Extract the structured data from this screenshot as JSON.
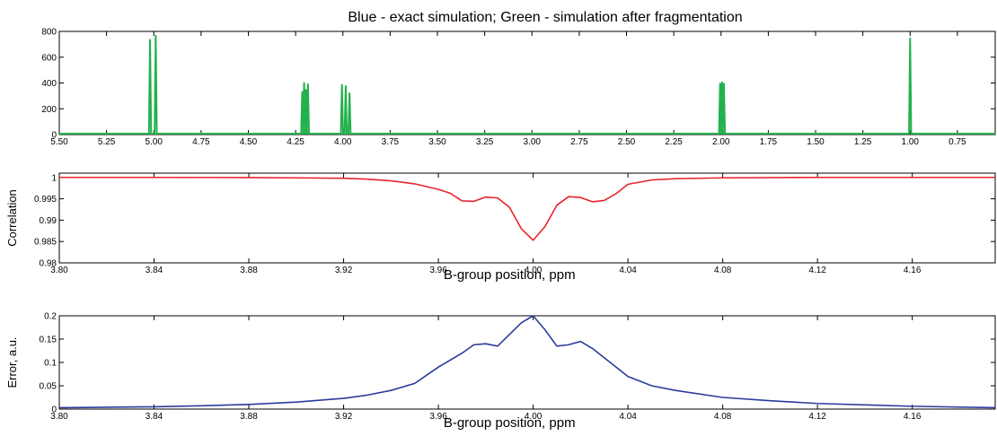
{
  "chart_data": [
    {
      "type": "line",
      "title": "Blue - exact simulation; Green - simulation after fragmentation",
      "xlabel": "",
      "ylabel": "",
      "x_reversed": true,
      "xlim": [
        5.5,
        0.55
      ],
      "ylim": [
        0,
        800
      ],
      "xticks": [
        "5.50",
        "5.25",
        "5.00",
        "4.75",
        "4.50",
        "4.25",
        "4.00",
        "3.75",
        "3.50",
        "3.25",
        "3.00",
        "2.75",
        "2.50",
        "2.25",
        "2.00",
        "1.75",
        "1.50",
        "1.25",
        "1.00",
        "0.75"
      ],
      "yticks": [
        "0",
        "200",
        "400",
        "600",
        "800"
      ],
      "grid": false,
      "series": [
        {
          "color": "#22b14c",
          "peaks": [
            {
              "x": 5.02,
              "y": 735
            },
            {
              "x": 4.99,
              "y": 765
            },
            {
              "x": 4.215,
              "y": 330
            },
            {
              "x": 4.205,
              "y": 400
            },
            {
              "x": 4.195,
              "y": 345
            },
            {
              "x": 4.185,
              "y": 390
            },
            {
              "x": 4.005,
              "y": 385
            },
            {
              "x": 3.985,
              "y": 375
            },
            {
              "x": 3.965,
              "y": 320
            },
            {
              "x": 2.005,
              "y": 395
            },
            {
              "x": 1.995,
              "y": 405
            },
            {
              "x": 1.985,
              "y": 395
            },
            {
              "x": 1.0,
              "y": 745
            }
          ]
        }
      ]
    },
    {
      "type": "line",
      "title": "",
      "xlabel": "B-group position, ppm",
      "ylabel": "Correlation",
      "xlim": [
        3.8,
        4.195
      ],
      "ylim": [
        0.98,
        1.001
      ],
      "xticks": [
        "3.80",
        "3.84",
        "3.88",
        "3.92",
        "3.96",
        "4.00",
        "4.04",
        "4.08",
        "4.12",
        "4.16"
      ],
      "yticks": [
        "0.98",
        "0.985",
        "0.99",
        "0.995",
        "1"
      ],
      "series": [
        {
          "color": "#e8242c",
          "x": [
            3.8,
            3.84,
            3.88,
            3.9,
            3.92,
            3.93,
            3.94,
            3.95,
            3.96,
            3.965,
            3.97,
            3.975,
            3.98,
            3.985,
            3.99,
            3.995,
            4.0,
            4.005,
            4.01,
            4.015,
            4.02,
            4.025,
            4.03,
            4.035,
            4.04,
            4.05,
            4.06,
            4.08,
            4.12,
            4.16,
            4.195
          ],
          "y": [
            1.0,
            1.0,
            0.99997,
            0.9999,
            0.9998,
            0.9996,
            0.9992,
            0.9985,
            0.9972,
            0.9963,
            0.9945,
            0.9944,
            0.9954,
            0.9952,
            0.993,
            0.988,
            0.9853,
            0.9885,
            0.9935,
            0.9955,
            0.9953,
            0.9943,
            0.9946,
            0.9962,
            0.9984,
            0.9994,
            0.9997,
            0.9999,
            1.0,
            1.0,
            1.0
          ]
        }
      ]
    },
    {
      "type": "line",
      "title": "",
      "xlabel": "B-group position, ppm",
      "ylabel": "Error, a.u.",
      "xlim": [
        3.8,
        4.195
      ],
      "ylim": [
        0,
        0.2
      ],
      "xticks": [
        "3.80",
        "3.84",
        "3.88",
        "3.92",
        "3.96",
        "4.00",
        "4.04",
        "4.08",
        "4.12",
        "4.16"
      ],
      "yticks": [
        "0",
        "0.05",
        "0.1",
        "0.15",
        "0.2"
      ],
      "series": [
        {
          "color": "#2b3c9b",
          "x": [
            3.8,
            3.82,
            3.84,
            3.86,
            3.88,
            3.9,
            3.92,
            3.93,
            3.94,
            3.95,
            3.96,
            3.97,
            3.975,
            3.98,
            3.985,
            3.99,
            3.995,
            4.0,
            4.005,
            4.01,
            4.015,
            4.02,
            4.025,
            4.03,
            4.04,
            4.05,
            4.06,
            4.08,
            4.1,
            4.12,
            4.14,
            4.16,
            4.195
          ],
          "y": [
            0.003,
            0.004,
            0.005,
            0.007,
            0.01,
            0.015,
            0.023,
            0.03,
            0.04,
            0.055,
            0.09,
            0.12,
            0.138,
            0.14,
            0.135,
            0.16,
            0.185,
            0.2,
            0.17,
            0.135,
            0.138,
            0.145,
            0.13,
            0.11,
            0.07,
            0.05,
            0.04,
            0.025,
            0.018,
            0.012,
            0.009,
            0.006,
            0.003
          ]
        }
      ]
    }
  ]
}
